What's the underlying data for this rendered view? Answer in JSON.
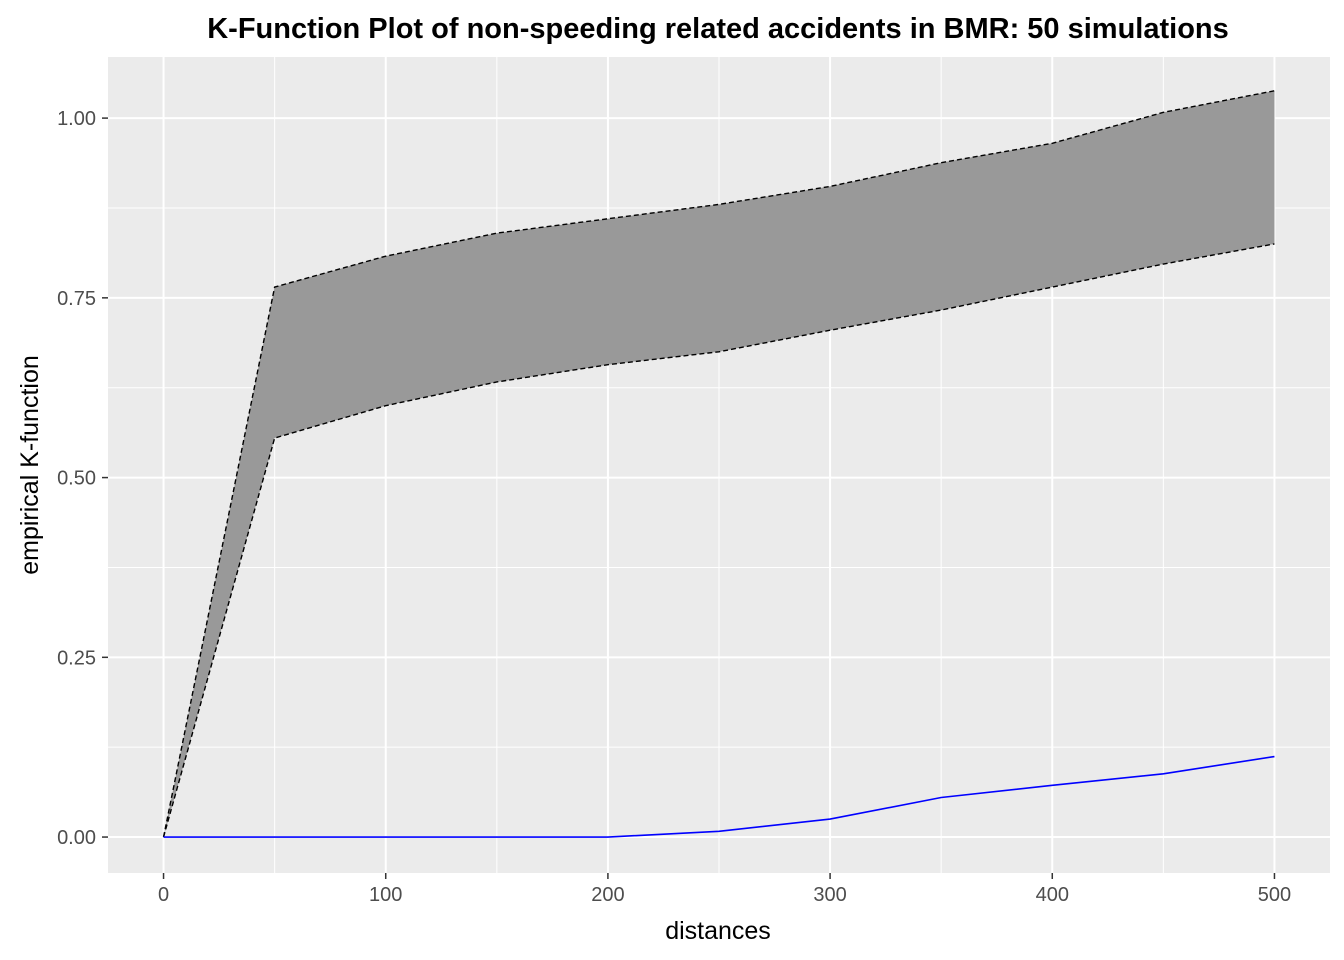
{
  "chart_data": {
    "type": "line",
    "title": "K-Function Plot of non-speeding related accidents in BMR: 50 simulations",
    "xlabel": "distances",
    "ylabel": "empirical K-function",
    "xlim": [
      -25,
      525
    ],
    "ylim": [
      -0.05,
      1.085
    ],
    "x_ticks": [
      0,
      100,
      200,
      300,
      400,
      500
    ],
    "x_tick_labels": [
      "0",
      "100",
      "200",
      "300",
      "400",
      "500"
    ],
    "y_ticks": [
      0,
      0.25,
      0.5,
      0.75,
      1.0
    ],
    "y_tick_labels": [
      "0.00",
      "0.25",
      "0.50",
      "0.75",
      "1.00"
    ],
    "grid": true,
    "panel_background": "#ebebeb",
    "x": [
      0,
      50,
      100,
      150,
      200,
      250,
      300,
      350,
      400,
      450,
      500
    ],
    "envelope": {
      "upper": [
        0,
        0.765,
        0.808,
        0.84,
        0.86,
        0.88,
        0.905,
        0.938,
        0.965,
        1.008,
        1.038
      ],
      "lower": [
        0,
        0.555,
        0.6,
        0.633,
        0.657,
        0.675,
        0.705,
        0.733,
        0.765,
        0.797,
        0.825
      ],
      "fill": "#999999",
      "line_color": "#000000"
    },
    "series": [
      {
        "values": [
          0,
          0,
          0,
          0,
          0,
          0.008,
          0.025,
          0.055,
          0.072,
          0.088,
          0.112
        ],
        "color": "#0000ff"
      }
    ]
  }
}
